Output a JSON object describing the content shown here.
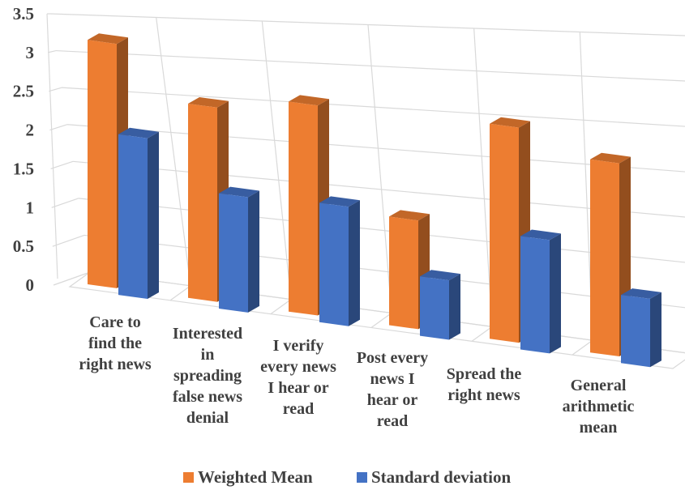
{
  "chart_data": {
    "type": "bar",
    "title": "",
    "xlabel": "",
    "ylabel": "",
    "ylim": [
      0,
      3.5
    ],
    "yticks": [
      "0",
      "0.5",
      "1",
      "1.5",
      "2",
      "2.5",
      "3",
      "3.5"
    ],
    "grid": true,
    "legend_position": "bottom",
    "categories": [
      "Care to find the right news",
      "Interested in spreading false news denial",
      "I verify every news I hear or read",
      "Post every news I hear or read",
      "Spread the right news",
      "General arithmetic mean"
    ],
    "category_lines": [
      [
        "Care to",
        "find the",
        "right news"
      ],
      [
        "Interested",
        "in",
        "spreading",
        "false news",
        "denial"
      ],
      [
        "I verify",
        "every news",
        "I hear or",
        "read"
      ],
      [
        "Post every",
        "news I",
        "hear or",
        "read"
      ],
      [
        "Spread the",
        "right news"
      ],
      [
        "General",
        "arithmetic",
        "mean"
      ]
    ],
    "series": [
      {
        "name": "Weighted Mean",
        "color": "#ED7D31",
        "values": [
          3.0,
          2.3,
          2.4,
          1.2,
          2.3,
          2.0
        ]
      },
      {
        "name": "Standard deviation",
        "color": "#4472C4",
        "values": [
          1.95,
          1.35,
          1.35,
          0.65,
          1.2,
          0.7
        ]
      }
    ]
  }
}
